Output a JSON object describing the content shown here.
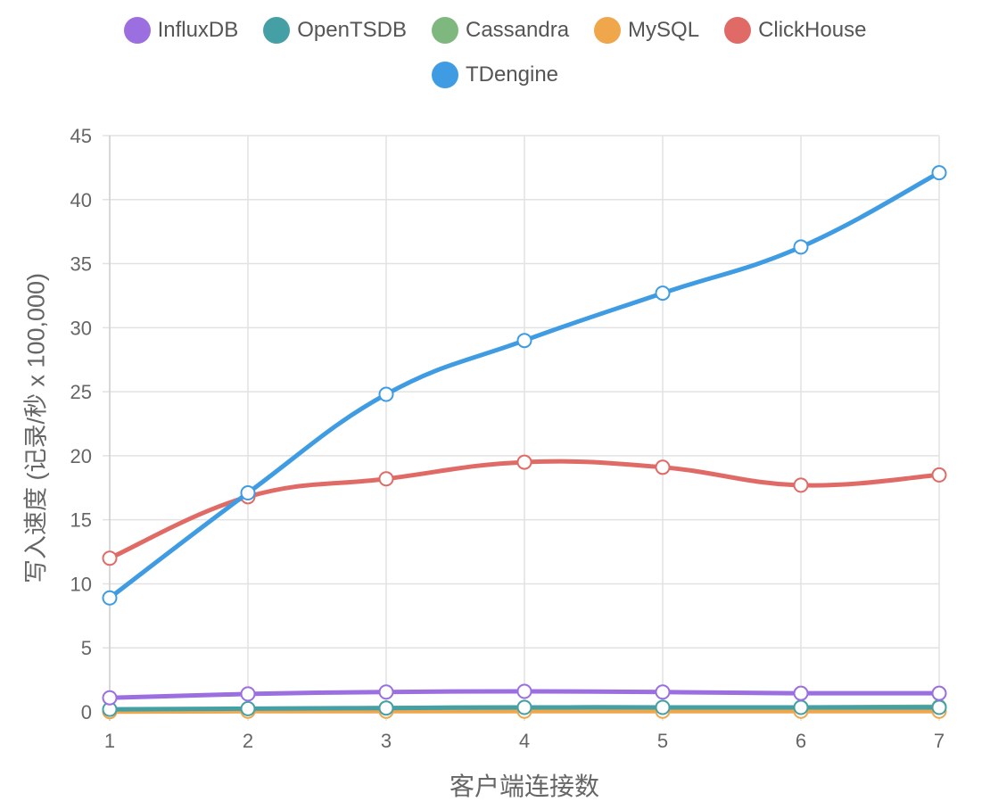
{
  "chart_data": {
    "type": "line",
    "xlabel": "客户端连接数",
    "ylabel": "写入速度 (记录/秒 x 100,000)",
    "x": [
      1,
      2,
      3,
      4,
      5,
      6,
      7
    ],
    "ylim": [
      0,
      45
    ],
    "yticks": [
      0,
      5,
      10,
      15,
      20,
      25,
      30,
      35,
      40,
      45
    ],
    "grid": true,
    "legend_position": "top",
    "series": [
      {
        "name": "InfluxDB",
        "color": "#9b6fe0",
        "values": [
          1.1,
          1.4,
          1.55,
          1.6,
          1.55,
          1.45,
          1.45
        ]
      },
      {
        "name": "OpenTSDB",
        "color": "#45a0a6",
        "values": [
          0.2,
          0.25,
          0.3,
          0.35,
          0.35,
          0.35,
          0.35
        ]
      },
      {
        "name": "Cassandra",
        "color": "#7fb87f",
        "values": [
          0.05,
          0.2,
          0.3,
          0.35,
          0.35,
          0.35,
          0.4
        ]
      },
      {
        "name": "MySQL",
        "color": "#f0a64a",
        "values": [
          0.02,
          0.05,
          0.05,
          0.05,
          0.05,
          0.05,
          0.05
        ]
      },
      {
        "name": "ClickHouse",
        "color": "#e06b66",
        "values": [
          12.0,
          16.8,
          18.2,
          19.5,
          19.1,
          17.7,
          18.5
        ]
      },
      {
        "name": "TDengine",
        "color": "#3f9ce3",
        "values": [
          8.9,
          17.1,
          24.8,
          29.0,
          32.7,
          36.3,
          42.1
        ]
      }
    ]
  }
}
